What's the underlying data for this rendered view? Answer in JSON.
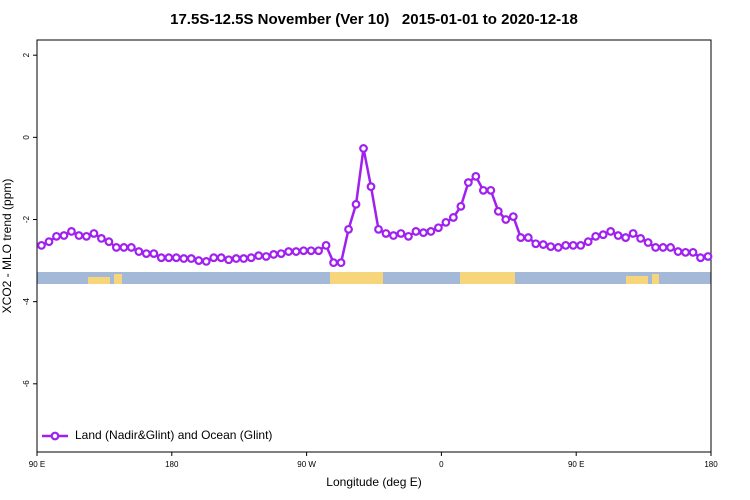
{
  "chart_data": {
    "type": "line",
    "title": "17.5S-12.5S November (Ver 10)   2015-01-01 to 2020-12-18",
    "xlabel": "Longitude (deg E)",
    "ylabel": "XCO2 - MLO trend (ppm)",
    "xlim": [
      90,
      540
    ],
    "ylim": [
      -7.66,
      2.37
    ],
    "xticks": [
      {
        "value": 90,
        "label": "90 E"
      },
      {
        "value": 180,
        "label": "180"
      },
      {
        "value": 270,
        "label": "90 W"
      },
      {
        "value": 360,
        "label": "0"
      },
      {
        "value": 450,
        "label": "90 E"
      },
      {
        "value": 540,
        "label": "180"
      }
    ],
    "yticks": [
      -6,
      -4,
      -2,
      0,
      2
    ],
    "grid": false,
    "legend": "bottom-left",
    "x": [
      93,
      98,
      103,
      108,
      113,
      118,
      123,
      128,
      133,
      138,
      143,
      148,
      153,
      158,
      163,
      168,
      173,
      178,
      183,
      188,
      193,
      198,
      203,
      208,
      213,
      218,
      223,
      228,
      233,
      238,
      243,
      248,
      253,
      258,
      263,
      268,
      273,
      278,
      283,
      288,
      293,
      298,
      303,
      308,
      313,
      318,
      323,
      328,
      333,
      338,
      343,
      348,
      353,
      358,
      363,
      368,
      373,
      378,
      383,
      388,
      393,
      398,
      403,
      408,
      413,
      418,
      423,
      428,
      433,
      438,
      443,
      448,
      453,
      458,
      463,
      468,
      473,
      478,
      483,
      488,
      493,
      498,
      503,
      508,
      513,
      518,
      523,
      528,
      533,
      538
    ],
    "series": [
      {
        "name": "Land (Nadir&Glint) and Ocean (Glint)",
        "color": "#a020f0",
        "values": [
          -2.63,
          -2.54,
          -2.41,
          -2.39,
          -2.29,
          -2.39,
          -2.41,
          -2.34,
          -2.46,
          -2.54,
          -2.68,
          -2.68,
          -2.68,
          -2.78,
          -2.83,
          -2.83,
          -2.93,
          -2.93,
          -2.93,
          -2.95,
          -2.95,
          -3.0,
          -3.02,
          -2.93,
          -2.93,
          -2.98,
          -2.95,
          -2.95,
          -2.93,
          -2.88,
          -2.9,
          -2.85,
          -2.83,
          -2.78,
          -2.78,
          -2.76,
          -2.76,
          -2.76,
          -2.63,
          -3.05,
          -3.05,
          -2.24,
          -1.63,
          -0.27,
          -1.2,
          -2.24,
          -2.34,
          -2.39,
          -2.34,
          -2.41,
          -2.29,
          -2.32,
          -2.29,
          -2.2,
          -2.07,
          -1.95,
          -1.68,
          -1.1,
          -0.95,
          -1.29,
          -1.29,
          -1.8,
          -2.0,
          -1.93,
          -2.44,
          -2.44,
          -2.59,
          -2.61,
          -2.66,
          -2.68,
          -2.63,
          -2.63,
          -2.63,
          -2.54,
          -2.41,
          -2.37,
          -2.29,
          -2.39,
          -2.44,
          -2.34,
          -2.46,
          -2.56,
          -2.68,
          -2.68,
          -2.68,
          -2.78,
          -2.8,
          -2.8,
          -2.93,
          -2.9
        ]
      }
    ]
  }
}
